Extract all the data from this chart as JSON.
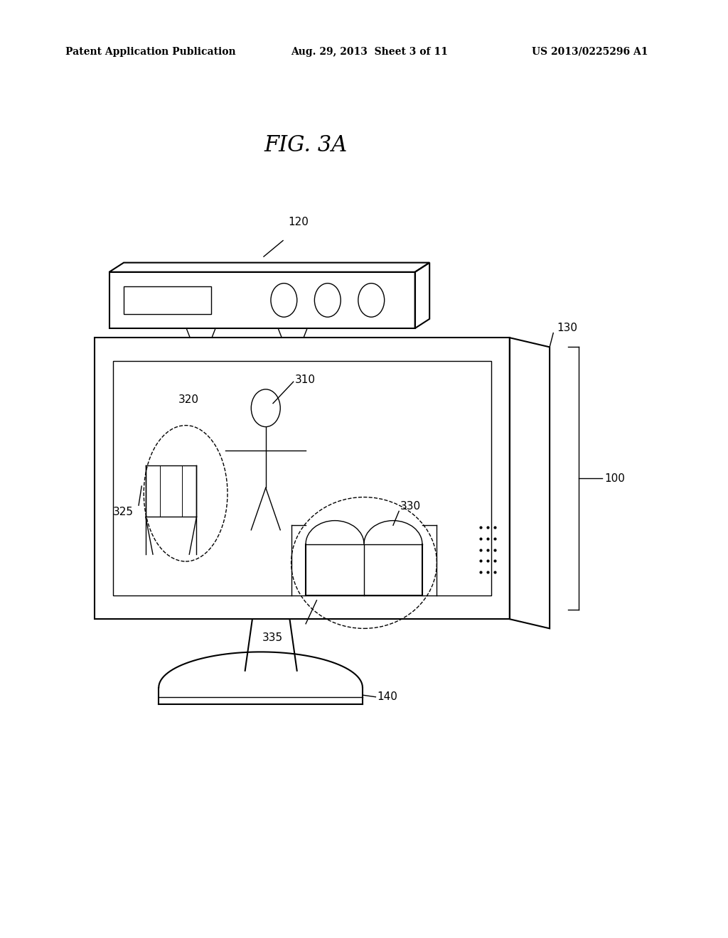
{
  "background_color": "#ffffff",
  "header_left": "Patent Application Publication",
  "header_mid": "Aug. 29, 2013  Sheet 3 of 11",
  "header_right": "US 2013/0225296 A1",
  "fig_title": "FIG. 3A"
}
